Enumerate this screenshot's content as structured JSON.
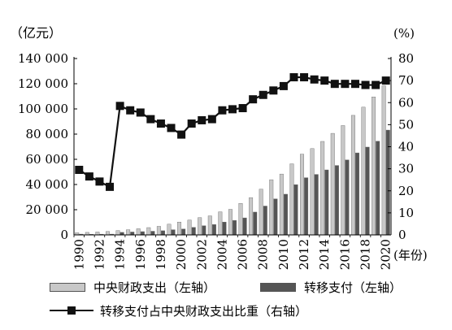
{
  "chart_data": {
    "type": "bar",
    "left_axis_unit": "（亿元）",
    "right_axis_unit": "(%)",
    "x_unit": "(年份)",
    "years": [
      1990,
      1991,
      1992,
      1993,
      1994,
      1995,
      1996,
      1997,
      1998,
      1999,
      2000,
      2001,
      2002,
      2003,
      2004,
      2005,
      2006,
      2007,
      2008,
      2009,
      2010,
      2011,
      2012,
      2013,
      2014,
      2015,
      2016,
      2017,
      2018,
      2019,
      2020
    ],
    "x_tick_labels": [
      "1990",
      "1992",
      "1994",
      "1996",
      "1998",
      "2000",
      "2002",
      "2004",
      "2006",
      "2008",
      "2010",
      "2012",
      "2014",
      "2016",
      "2018",
      "2020"
    ],
    "left_ticks": [
      "0",
      "20 000",
      "40 000",
      "60 000",
      "80 000",
      "100 000",
      "120 000",
      "140 000"
    ],
    "right_ticks": [
      "0",
      "10",
      "20",
      "30",
      "40",
      "50",
      "60",
      "70",
      "80"
    ],
    "ylim_left": [
      0,
      140000
    ],
    "ylim_right": [
      0,
      80
    ],
    "series": [
      {
        "name": "中央财政支出（左轴）",
        "kind": "bar",
        "axis": "left",
        "color": "#c8c8c8",
        "values": [
          1700,
          2000,
          2300,
          2700,
          3400,
          4100,
          4900,
          5800,
          6800,
          8500,
          10200,
          11800,
          13700,
          15100,
          18300,
          20300,
          25000,
          29600,
          36300,
          43800,
          48300,
          56400,
          64100,
          68500,
          74200,
          80600,
          86800,
          94900,
          101400,
          109500,
          118300
        ]
      },
      {
        "name": "转移支付（左轴）",
        "kind": "bar",
        "axis": "left",
        "color": "#555555",
        "values": [
          600,
          500,
          550,
          600,
          2000,
          2300,
          2600,
          2900,
          3300,
          4100,
          4700,
          6000,
          7300,
          8200,
          10200,
          11500,
          13500,
          18100,
          22900,
          28600,
          32300,
          39900,
          45400,
          48000,
          51600,
          55100,
          59500,
          65100,
          69700,
          74400,
          83200
        ]
      },
      {
        "name": "转移支付占中央财政支出比重（右轴）",
        "kind": "line",
        "axis": "right",
        "color": "#111111",
        "values": [
          29.5,
          26.5,
          24.2,
          21.8,
          58.5,
          56.5,
          55.5,
          52.5,
          50.5,
          48.5,
          45.5,
          50.5,
          52.0,
          52.5,
          56.5,
          57.0,
          57.5,
          61.5,
          63.5,
          65.5,
          67.5,
          71.5,
          71.5,
          70.5,
          70.0,
          68.5,
          68.5,
          68.5,
          68.0,
          68.0,
          70.0
        ]
      }
    ]
  }
}
